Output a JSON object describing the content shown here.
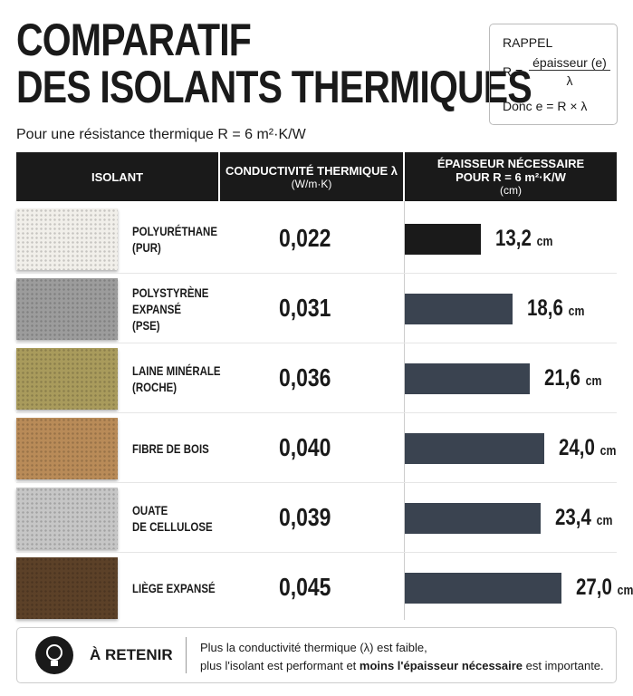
{
  "header": {
    "title_lines": [
      "COMPARATIF",
      "DES ISOLANTS THERMIQUES"
    ],
    "subtitle": "Pour une résistance thermique R = 6 m²·K/W"
  },
  "reminder": {
    "title": "RAPPEL",
    "lhs": "R =",
    "numerator": "épaisseur (e)",
    "denominator": "λ",
    "result": "Donc e = R × λ"
  },
  "table": {
    "headers": {
      "material": "ISOLANT",
      "conductivity": [
        "CONDUCTIVITÉ THERMIQUE λ",
        "(W/m·K)"
      ],
      "thickness": [
        "ÉPAISSEUR NÉCESSAIRE",
        "POUR R = 6 m²·K/W",
        "(cm)"
      ]
    },
    "unit": "cm",
    "rows": [
      {
        "name": [
          "POLYURÉTHANE",
          "(PUR)"
        ],
        "conductivity": "0,022",
        "thickness": 13.2,
        "thickness_label": "13,2"
      },
      {
        "name": [
          "POLYSTYRÈNE",
          "EXPANSÉ",
          "(PSE)"
        ],
        "conductivity": "0,031",
        "thickness": 18.6,
        "thickness_label": "18,6"
      },
      {
        "name": [
          "LAINE MINÉRALE",
          "(ROCHE)"
        ],
        "conductivity": "0,036",
        "thickness": 21.6,
        "thickness_label": "21,6"
      },
      {
        "name": [
          "FIBRE DE BOIS"
        ],
        "conductivity": "0,040",
        "thickness": 24.0,
        "thickness_label": "24,0"
      },
      {
        "name": [
          "OUATE",
          "DE CELLULOSE"
        ],
        "conductivity": "0,039",
        "thickness": 23.4,
        "thickness_label": "23,4"
      },
      {
        "name": [
          "LIÈGE EXPANSÉ"
        ],
        "conductivity": "0,045",
        "thickness": 27.0,
        "thickness_label": "27,0"
      }
    ]
  },
  "takeaway": {
    "title": "À RETENIR",
    "line1": "Plus la conductivité thermique (λ) est faible,",
    "line2_start": "plus l'isolant est performant et ",
    "line2_bold": "moins l'épaisseur nécessaire",
    "line2_end": " est importante."
  }
}
